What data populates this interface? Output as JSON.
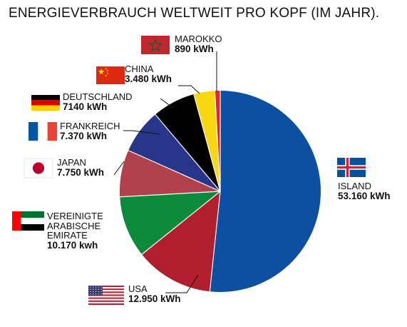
{
  "chart_data": {
    "type": "pie",
    "title": "ENERGIEVERBRAUCH WELTWEIT PRO KOPF (IM JAHR).",
    "slices": [
      {
        "label": "ISLAND",
        "value": 53160,
        "value_label": "53.160 kWh",
        "color": "#0d4fa0"
      },
      {
        "label": "USA",
        "value": 12950,
        "value_label": "12.950 kWh",
        "color": "#b11f2f"
      },
      {
        "label": "VEREINIGTE ARABISCHE EMIRATE",
        "label_lines": [
          "VEREINIGTE",
          "ARABISCHE",
          "EMIRATE"
        ],
        "value": 10170,
        "value_label": "10.170 kwh",
        "color": "#0b8a3a"
      },
      {
        "label": "JAPAN",
        "value": 7750,
        "value_label": "7.750 kWh",
        "color": "#b1424d"
      },
      {
        "label": "FRANKREICH",
        "value": 7370,
        "value_label": "7.370 kWh",
        "color": "#27368a"
      },
      {
        "label": "DEUTSCHLAND",
        "value": 7140,
        "value_label": "7140 kWh",
        "color": "#000000"
      },
      {
        "label": "CHINA",
        "value": 3480,
        "value_label": "3.480 kWh",
        "color": "#f7d711"
      },
      {
        "label": "MAROKKO",
        "value": 890,
        "value_label": "890 kWh",
        "color": "#e3262b"
      }
    ],
    "flag_icons": [
      "iceland-flag-icon",
      "usa-flag-icon",
      "uae-flag-icon",
      "japan-flag-icon",
      "france-flag-icon",
      "germany-flag-icon",
      "china-flag-icon",
      "morocco-flag-icon"
    ]
  }
}
